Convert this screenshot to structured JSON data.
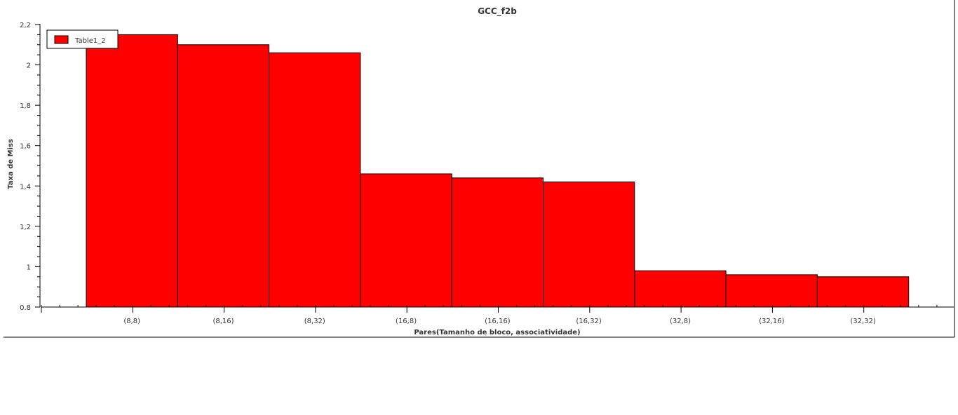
{
  "chart_data": {
    "type": "bar",
    "title": "GCC_f2b",
    "xlabel": "Pares(Tamanho de bloco, associatividade)",
    "ylabel": "Taxa de Miss",
    "categories": [
      "(8,8)",
      "(8,16)",
      "(8,32)",
      "(16,8)",
      "(16,16)",
      "(16,32)",
      "(32,8)",
      "(32,16)",
      "(32,32)"
    ],
    "series": [
      {
        "name": "Table1_2",
        "values": [
          2.15,
          2.1,
          2.06,
          1.46,
          1.44,
          1.42,
          0.98,
          0.96,
          0.95
        ]
      }
    ],
    "ylim": [
      0.8,
      2.2
    ],
    "yticks": [
      "0.8",
      "1",
      "1,2",
      "1,4",
      "1,6",
      "1,8",
      "2",
      "2,2"
    ],
    "legend_position": "top-left",
    "grid": false,
    "bar_color": "#ff0000",
    "bar_edge_color": "#000000"
  }
}
